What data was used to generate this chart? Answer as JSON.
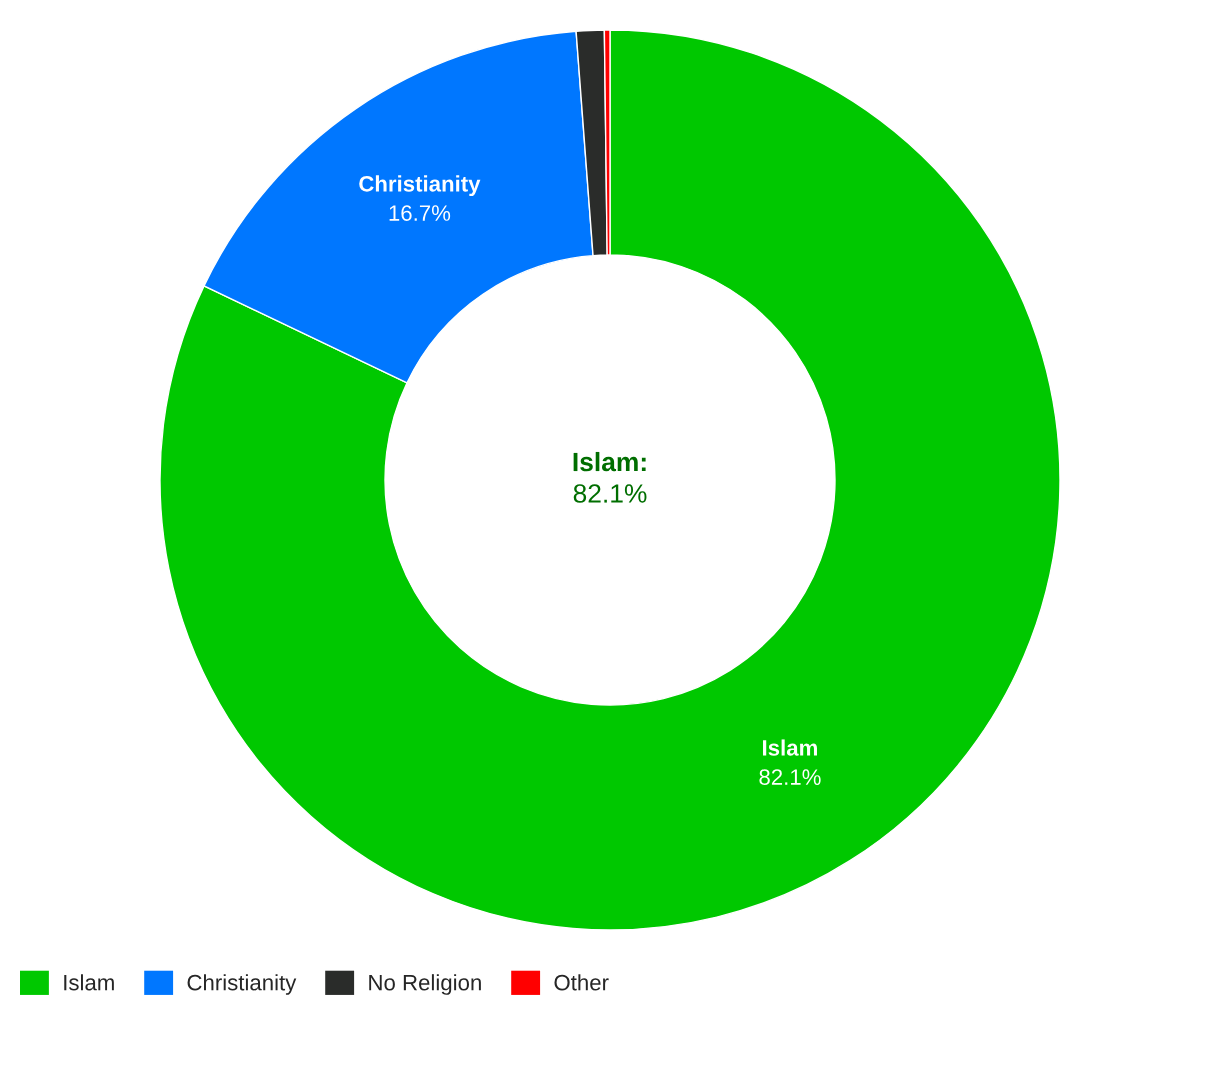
{
  "chart_data": {
    "type": "donut",
    "categories": [
      "Islam",
      "Christianity",
      "No Religion",
      "Other"
    ],
    "values": [
      82.1,
      16.7,
      1.0,
      0.2
    ],
    "colors": [
      "#00c800",
      "#0077ff",
      "#2a2c2a",
      "#ff0000"
    ],
    "value_labels": [
      "82.1%",
      "16.7%",
      null,
      null
    ],
    "annotations": [
      "Islam:\n82.1%"
    ],
    "legend": "bottom left"
  }
}
